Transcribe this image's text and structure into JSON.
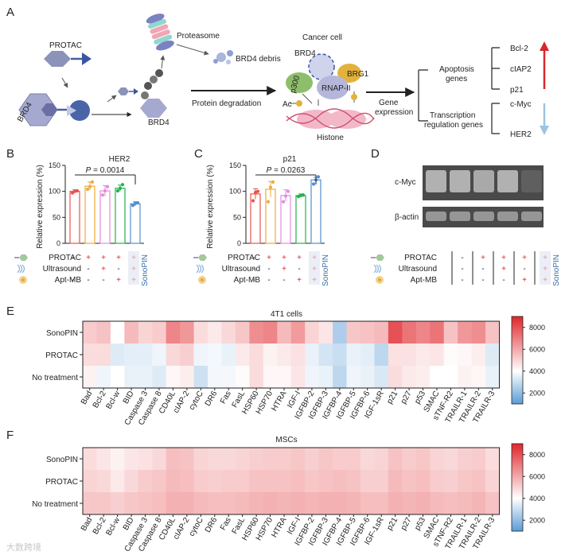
{
  "panel_letters": {
    "A": "A",
    "B": "B",
    "C": "C",
    "D": "D",
    "E": "E",
    "F": "F"
  },
  "panelA": {
    "protac": "PROTAC",
    "brd4": "BRD4",
    "proteasome": "Proteasome",
    "brd4_debris": "BRD4 debris",
    "brd4_mid": "BRD4",
    "protein_degradation": "Protein degradation",
    "cancer_cell": "Cancer cell",
    "brd4_cell": "BRD4",
    "brg1": "BRG1",
    "p300": "p300",
    "rnap": "RNAP-II",
    "ac": "Ac",
    "histone": "Histone",
    "gene_expression": [
      "Gene",
      "expression"
    ],
    "apoptosis": [
      "Apoptosis",
      "genes"
    ],
    "transcription": [
      "Transcription",
      "regulation genes"
    ],
    "up_genes": [
      "Bcl-2",
      "cIAP2",
      "p21"
    ],
    "down_genes": [
      "c-Myc",
      "HER2"
    ],
    "colors": {
      "up_arrow": "#d9262b",
      "down_arrow": "#9cc3e4"
    }
  },
  "treatment_rows": [
    "PROTAC",
    "Ultrasound",
    "Apt-MB"
  ],
  "treatment_signs": [
    [
      "-",
      "+",
      "+",
      "+",
      "+"
    ],
    [
      "-",
      "-",
      "+",
      "-",
      "+"
    ],
    [
      "-",
      "-",
      "-",
      "+",
      "+"
    ]
  ],
  "sonopin": "SonoPIN",
  "chart_data": [
    {
      "type": "bar",
      "panel": "B",
      "title": "HER2",
      "ylabel": "Relative expression (%)",
      "ylim": [
        0,
        150
      ],
      "yticks": [
        0,
        50,
        100,
        150
      ],
      "groups": 5,
      "values": [
        100,
        110,
        101,
        106,
        76
      ],
      "errors": [
        3,
        8,
        10,
        6,
        4
      ],
      "points": [
        [
          97,
          100,
          101
        ],
        [
          104,
          109,
          118
        ],
        [
          93,
          101,
          109
        ],
        [
          101,
          106,
          113
        ],
        [
          73,
          77,
          78
        ]
      ],
      "colors": [
        "#e8534c",
        "#f0a93a",
        "#e58ae0",
        "#22b14c",
        "#4f8fd0"
      ],
      "annotation": {
        "prefix": "P",
        "text": " = 0.0014",
        "from": 0,
        "to": 4
      }
    },
    {
      "type": "bar",
      "panel": "C",
      "title": "p21",
      "ylabel": "Relative expression (%)",
      "ylim": [
        0,
        150
      ],
      "yticks": [
        0,
        50,
        100,
        150
      ],
      "groups": 5,
      "values": [
        95,
        104,
        92,
        92,
        122
      ],
      "errors": [
        10,
        15,
        11,
        3,
        5
      ],
      "points": [
        [
          82,
          98,
          100
        ],
        [
          80,
          108,
          118
        ],
        [
          80,
          91,
          100
        ],
        [
          90,
          92,
          93
        ],
        [
          114,
          122,
          128
        ]
      ],
      "colors": [
        "#e8534c",
        "#f0a93a",
        "#e58ae0",
        "#22b14c",
        "#4f8fd0"
      ],
      "annotation": {
        "prefix": "P",
        "text": " = 0.0263",
        "from": 0,
        "to": 4
      }
    },
    {
      "type": "heatmap",
      "panel": "E",
      "title": "4T1 cells",
      "rows": [
        "SonoPIN",
        "PROTAC",
        "No treatment"
      ],
      "columns": [
        "Bad",
        "Bcl-2",
        "Bcl-w",
        "BID",
        "Caspase 3",
        "Caspase 8",
        "CD40L",
        "cIAP-2",
        "cytoC",
        "DR6",
        "Fas",
        "FasL",
        "HSP60",
        "HSP70",
        "HTRA",
        "IGF-I",
        "IGFBP-2",
        "IGFBP-3",
        "IGFBP-4",
        "IGFBP-5",
        "IGFBP-6",
        "IGF-1sR",
        "p21",
        "p27",
        "p53",
        "SMAC",
        "sTNF-R2",
        "TRAILR-1",
        "TRAILR-2",
        "TRAILR-3"
      ],
      "values": [
        [
          5200,
          5400,
          4000,
          5600,
          5000,
          5200,
          6800,
          6400,
          4800,
          4500,
          4900,
          5300,
          6600,
          6800,
          5600,
          6300,
          5000,
          4600,
          2500,
          5300,
          5400,
          5600,
          8000,
          7200,
          6800,
          7200,
          5400,
          6400,
          6600,
          5400
        ],
        [
          4800,
          4800,
          3400,
          3500,
          3500,
          3700,
          4900,
          5100,
          3700,
          3800,
          3600,
          4500,
          4800,
          4300,
          4500,
          4700,
          3600,
          3200,
          3000,
          3600,
          3500,
          2800,
          4700,
          4700,
          4500,
          4600,
          4100,
          4200,
          4400,
          3400
        ],
        [
          4300,
          3700,
          4000,
          3600,
          3600,
          3400,
          4200,
          4400,
          3100,
          3800,
          3800,
          4100,
          4800,
          4200,
          4200,
          4600,
          3700,
          3600,
          2800,
          3700,
          3600,
          3300,
          4800,
          4500,
          4400,
          4000,
          4000,
          4300,
          4200,
          3600
        ]
      ],
      "scale": {
        "min": 1000,
        "max": 9000,
        "ticks": [
          2000,
          4000,
          6000,
          8000
        ]
      }
    },
    {
      "type": "heatmap",
      "panel": "F",
      "title": "MSCs",
      "rows": [
        "SonoPIN",
        "PROTAC",
        "No treatment"
      ],
      "columns": [
        "Bad",
        "Bcl-2",
        "Bcl-w",
        "BID",
        "Caspase 3",
        "Caspase 8",
        "CD40L",
        "cIAP-2",
        "cytoC",
        "DR6",
        "Fas",
        "FasL",
        "HSP60",
        "HSP70",
        "HTRA",
        "IGF-I",
        "IGFBP-2",
        "IGFBP-3",
        "IGFBP-4",
        "IGFBP-5",
        "IGFBP-6",
        "IGF-1sR",
        "p21",
        "p27",
        "p53",
        "SMAC",
        "sTNF-R2",
        "TRAILR-1",
        "TRAILR-2",
        "TRAILR-3"
      ],
      "values": [
        [
          4800,
          4600,
          4300,
          4600,
          4700,
          4900,
          5500,
          5400,
          5000,
          4900,
          4900,
          5000,
          5100,
          5200,
          5200,
          5300,
          5100,
          5300,
          5200,
          5200,
          4900,
          5000,
          5400,
          5200,
          5300,
          5000,
          4900,
          5100,
          5200,
          4800
        ],
        [
          5000,
          4900,
          4500,
          4900,
          5200,
          5300,
          5600,
          5500,
          5200,
          5100,
          5200,
          5200,
          5400,
          5400,
          5400,
          5500,
          5300,
          5400,
          5500,
          5400,
          5100,
          5100,
          5600,
          5400,
          5500,
          5200,
          5100,
          5300,
          5400,
          5000
        ],
        [
          5300,
          5300,
          5100,
          5300,
          5400,
          5500,
          5800,
          5800,
          5600,
          5500,
          5500,
          5600,
          5700,
          5800,
          5700,
          5800,
          5700,
          5800,
          5800,
          5700,
          5500,
          5500,
          5800,
          5700,
          5800,
          5600,
          5500,
          5600,
          5700,
          5400
        ]
      ],
      "scale": {
        "min": 1000,
        "max": 9000,
        "ticks": [
          2000,
          4000,
          6000,
          8000
        ]
      }
    }
  ],
  "panelD": {
    "cmyc": "c-Myc",
    "bactin": "β-actin",
    "cmyc_intensity": [
      0.85,
      0.85,
      0.8,
      0.85,
      0.25
    ],
    "bactin_intensity": [
      0.75,
      0.75,
      0.75,
      0.75,
      0.75
    ]
  },
  "watermark": "大数跨境"
}
